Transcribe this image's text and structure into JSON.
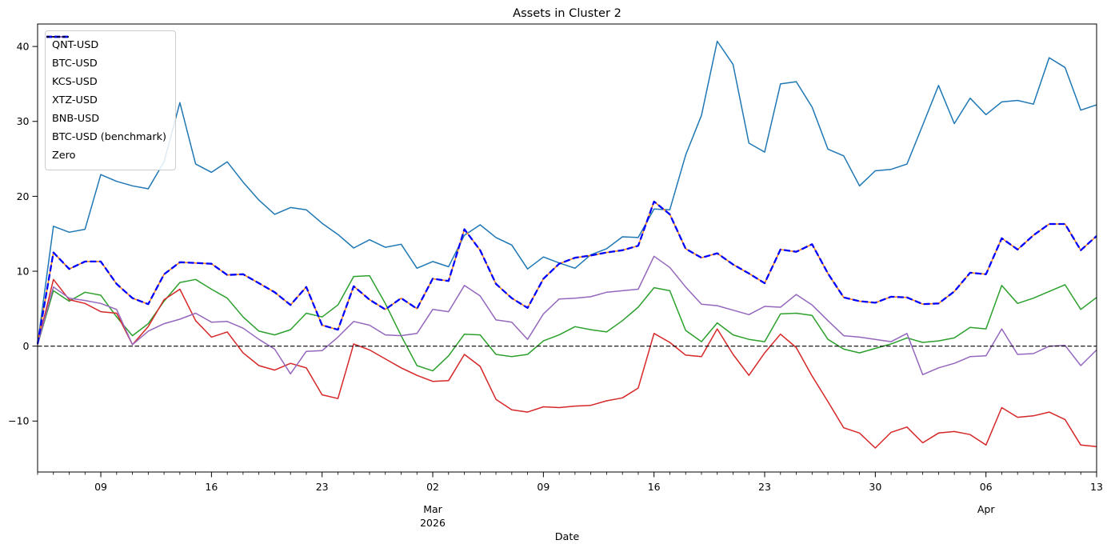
{
  "chart_data": {
    "type": "line",
    "title": "Assets in Cluster 2",
    "xlabel": "Date",
    "ylabel": "",
    "grid": false,
    "legend_position": "upper left",
    "n_points": 68,
    "ylim": [
      -16.8,
      43.0
    ],
    "y_ticks": [
      {
        "value": -10,
        "label": "−10"
      },
      {
        "value": 0,
        "label": "0"
      },
      {
        "value": 10,
        "label": "10"
      },
      {
        "value": 20,
        "label": "20"
      },
      {
        "value": 30,
        "label": "30"
      },
      {
        "value": 40,
        "label": "40"
      }
    ],
    "x_major_ticks": [
      {
        "index": 4,
        "label": "09"
      },
      {
        "index": 11,
        "label": "16"
      },
      {
        "index": 18,
        "label": "23"
      },
      {
        "index": 25,
        "label": "02"
      },
      {
        "index": 32,
        "label": "09"
      },
      {
        "index": 39,
        "label": "16"
      },
      {
        "index": 46,
        "label": "23"
      },
      {
        "index": 53,
        "label": "30"
      },
      {
        "index": 60,
        "label": "06"
      },
      {
        "index": 67,
        "label": "13"
      }
    ],
    "x_month_labels": [
      {
        "index": 25,
        "lines": [
          "Mar",
          "2026"
        ]
      },
      {
        "index": 60,
        "lines": [
          "Apr"
        ]
      }
    ],
    "series": [
      {
        "name": "QNT-USD",
        "color": "#1f77b4",
        "style": "solid",
        "width": 1.5,
        "values": [
          0.3,
          16,
          15.2,
          15.6,
          22.9,
          22,
          21.4,
          21,
          24.6,
          32.5,
          24.3,
          23.2,
          24.6,
          21.9,
          19.5,
          17.6,
          18.5,
          18.2,
          16.4,
          14.9,
          13.1,
          14.2,
          13.2,
          13.6,
          10.4,
          11.3,
          10.6,
          14.8,
          16.2,
          14.5,
          13.5,
          10.3,
          11.9,
          11.1,
          10.4,
          12.2,
          13,
          14.6,
          14.5,
          18.3,
          18.2,
          25.5,
          30.8,
          40.7,
          37.6,
          27.1,
          25.9,
          35,
          35.3,
          31.9,
          26.3,
          25.4,
          21.4,
          23.4,
          23.6,
          24.3,
          29.5,
          34.8,
          29.7,
          33.1,
          30.9,
          32.6,
          32.8,
          32.3,
          38.5,
          37.2,
          31.5,
          32.2
        ]
      },
      {
        "name": "BTC-USD",
        "color": "#ff7f0e",
        "style": "solid",
        "width": 1.5,
        "values": [
          0.3,
          12.5,
          10.3,
          11.3,
          11.3,
          8.3,
          6.4,
          5.6,
          9.6,
          11.2,
          11.1,
          11,
          9.5,
          9.6,
          8.4,
          7.2,
          5.5,
          7.9,
          2.8,
          2.2,
          8,
          6.2,
          4.9,
          6.4,
          5,
          9,
          8.7,
          15.6,
          12.8,
          8.3,
          6.4,
          5.1,
          9,
          11,
          11.8,
          12.1,
          12.5,
          12.8,
          13.4,
          19.3,
          17.6,
          13,
          11.8,
          12.4,
          10.9,
          9.7,
          8.4,
          12.9,
          12.6,
          13.6,
          9.7,
          6.5,
          6,
          5.8,
          6.6,
          6.5,
          5.6,
          5.7,
          7.3,
          9.8,
          9.6,
          14.4,
          12.9,
          14.8,
          16.3,
          16.3,
          12.8,
          14.7
        ]
      },
      {
        "name": "KCS-USD",
        "color": "#2ca02c",
        "style": "solid",
        "width": 1.5,
        "values": [
          0.2,
          7.4,
          6,
          7.2,
          6.8,
          3.9,
          1.4,
          3,
          6,
          8.5,
          8.9,
          7.6,
          6.4,
          3.9,
          2,
          1.5,
          2.2,
          4.4,
          3.9,
          5.5,
          9.3,
          9.4,
          5.7,
          1.4,
          -2.6,
          -3.3,
          -1.3,
          1.6,
          1.5,
          -1.1,
          -1.4,
          -1.1,
          0.7,
          1.5,
          2.6,
          2.2,
          1.9,
          3.4,
          5.2,
          7.8,
          7.4,
          2.1,
          0.6,
          3.1,
          1.5,
          0.9,
          0.6,
          4.3,
          4.4,
          4.1,
          0.9,
          -0.4,
          -0.9,
          -0.3,
          0.3,
          1.1,
          0.5,
          0.7,
          1.1,
          2.5,
          2.3,
          8.1,
          5.7,
          6.4,
          7.3,
          8.2,
          4.9,
          6.5
        ]
      },
      {
        "name": "XTZ-USD",
        "color": "#d62728",
        "style": "solid",
        "width": 1.5,
        "values": [
          0.2,
          8.9,
          6.2,
          5.7,
          4.6,
          4.4,
          0.2,
          2.6,
          6.2,
          7.6,
          3.4,
          1.2,
          1.9,
          -0.9,
          -2.6,
          -3.2,
          -2.3,
          -2.9,
          -6.5,
          -7,
          0.3,
          -0.5,
          -1.7,
          -2.9,
          -3.9,
          -4.7,
          -4.6,
          -1.1,
          -2.7,
          -7.1,
          -8.5,
          -8.8,
          -8.1,
          -8.2,
          -8,
          -7.9,
          -7.3,
          -6.9,
          -5.6,
          1.7,
          0.5,
          -1.2,
          -1.4,
          2.3,
          -1.1,
          -3.9,
          -0.9,
          1.6,
          -0.2,
          -4,
          -7.4,
          -10.9,
          -11.6,
          -13.6,
          -11.5,
          -10.8,
          -12.9,
          -11.6,
          -11.4,
          -11.8,
          -13.2,
          -8.2,
          -9.5,
          -9.3,
          -8.8,
          -9.8,
          -13.2,
          -13.4
        ]
      },
      {
        "name": "BNB-USD",
        "color": "#9467bd",
        "style": "solid",
        "width": 1.5,
        "values": [
          0.2,
          7.9,
          6.4,
          6.1,
          5.7,
          4.9,
          0.2,
          2,
          3,
          3.6,
          4.4,
          3.2,
          3.3,
          2.4,
          0.9,
          -0.4,
          -3.7,
          -0.7,
          -0.6,
          1.2,
          3.3,
          2.8,
          1.5,
          1.4,
          1.7,
          4.9,
          4.6,
          8.1,
          6.7,
          3.5,
          3.2,
          0.9,
          4.3,
          6.3,
          6.4,
          6.6,
          7.2,
          7.4,
          7.6,
          12,
          10.5,
          7.9,
          5.6,
          5.4,
          4.8,
          4.2,
          5.3,
          5.2,
          6.9,
          5.5,
          3.4,
          1.4,
          1.2,
          0.9,
          0.6,
          1.7,
          -3.8,
          -2.9,
          -2.3,
          -1.4,
          -1.3,
          2.3,
          -1.1,
          -1,
          0,
          0.1,
          -2.6,
          -0.5
        ]
      },
      {
        "name": "BTC-USD (benchmark)",
        "color": "#0000ff",
        "style": "dashed",
        "width": 2.3,
        "values": [
          0.3,
          12.5,
          10.3,
          11.3,
          11.3,
          8.3,
          6.4,
          5.6,
          9.6,
          11.2,
          11.1,
          11,
          9.5,
          9.6,
          8.4,
          7.2,
          5.5,
          7.9,
          2.8,
          2.2,
          8,
          6.2,
          4.9,
          6.4,
          5,
          9,
          8.7,
          15.6,
          12.8,
          8.3,
          6.4,
          5.1,
          9,
          11,
          11.8,
          12.1,
          12.5,
          12.8,
          13.4,
          19.3,
          17.6,
          13,
          11.8,
          12.4,
          10.9,
          9.7,
          8.4,
          12.9,
          12.6,
          13.6,
          9.7,
          6.5,
          6,
          5.8,
          6.6,
          6.5,
          5.6,
          5.7,
          7.3,
          9.8,
          9.6,
          14.4,
          12.9,
          14.8,
          16.3,
          16.3,
          12.8,
          14.7
        ]
      },
      {
        "name": "Zero",
        "color": "#000000",
        "style": "dashed",
        "width": 1.1,
        "hline": 0,
        "values": null
      }
    ]
  }
}
